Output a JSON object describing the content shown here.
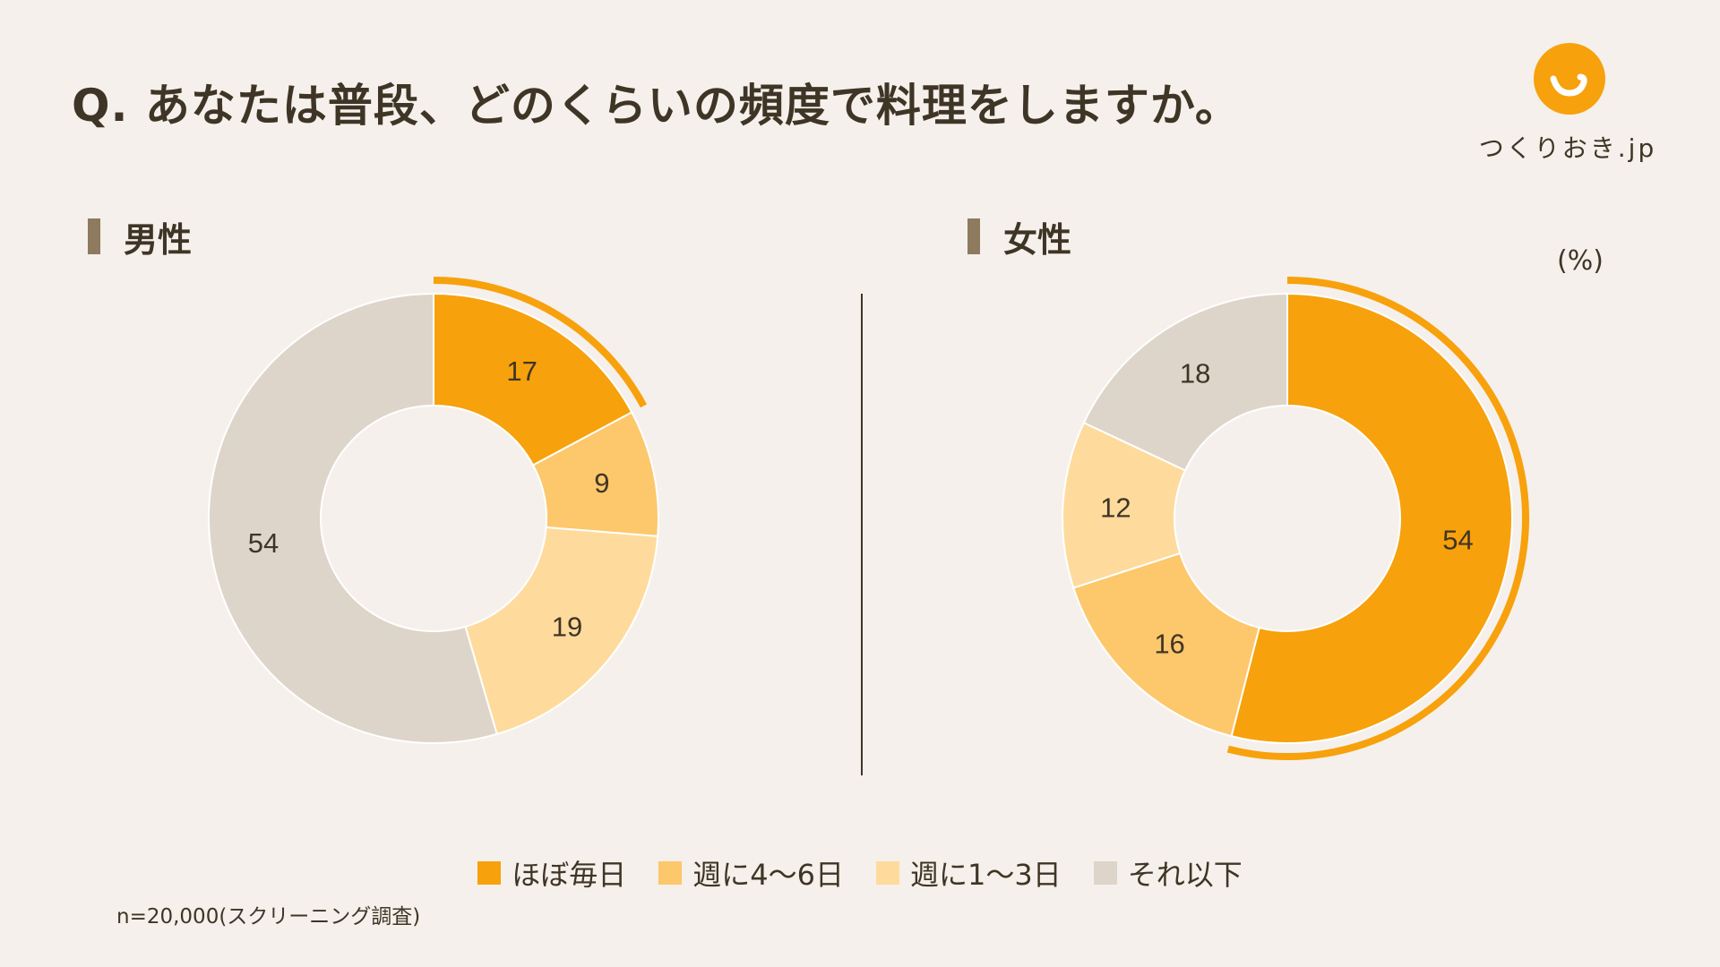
{
  "title": "Q. あなたは普段、どのくらいの頻度で料理をしますか。",
  "logo": {
    "text": "つくりおき.jp",
    "color": "#f7a10c",
    "icon": "smile-face-icon"
  },
  "unit": "(%)",
  "note": "n=20,000(スクリーニング調査)",
  "panels": {
    "male": {
      "title": "男性"
    },
    "female": {
      "title": "女性"
    }
  },
  "colors": {
    "background": "#f5f0eb",
    "text": "#3f3526",
    "title_bar": "#8e7a5e",
    "highlight_arc": "#f7a10c"
  },
  "chart_data": [
    {
      "type": "pie",
      "variant": "donut",
      "title": "男性",
      "categories": [
        "ほぼ毎日",
        "週に4〜6日",
        "週に1〜3日",
        "それ以下"
      ],
      "values": [
        17,
        9,
        19,
        54
      ],
      "colors": [
        "#f7a10c",
        "#fdc76b",
        "#fedb9c",
        "#ddd5ca"
      ],
      "highlight_index": 0,
      "unit": "%"
    },
    {
      "type": "pie",
      "variant": "donut",
      "title": "女性",
      "categories": [
        "ほぼ毎日",
        "週に4〜6日",
        "週に1〜3日",
        "それ以下"
      ],
      "values": [
        54,
        16,
        12,
        18
      ],
      "colors": [
        "#f7a10c",
        "#fdc76b",
        "#fedb9c",
        "#ddd5ca"
      ],
      "highlight_index": 0,
      "unit": "%"
    }
  ],
  "legend": [
    {
      "label": "ほぼ毎日",
      "color": "#f7a10c"
    },
    {
      "label": "週に4〜6日",
      "color": "#fdc76b"
    },
    {
      "label": "週に1〜3日",
      "color": "#fedb9c"
    },
    {
      "label": "それ以下",
      "color": "#ddd5ca"
    }
  ]
}
